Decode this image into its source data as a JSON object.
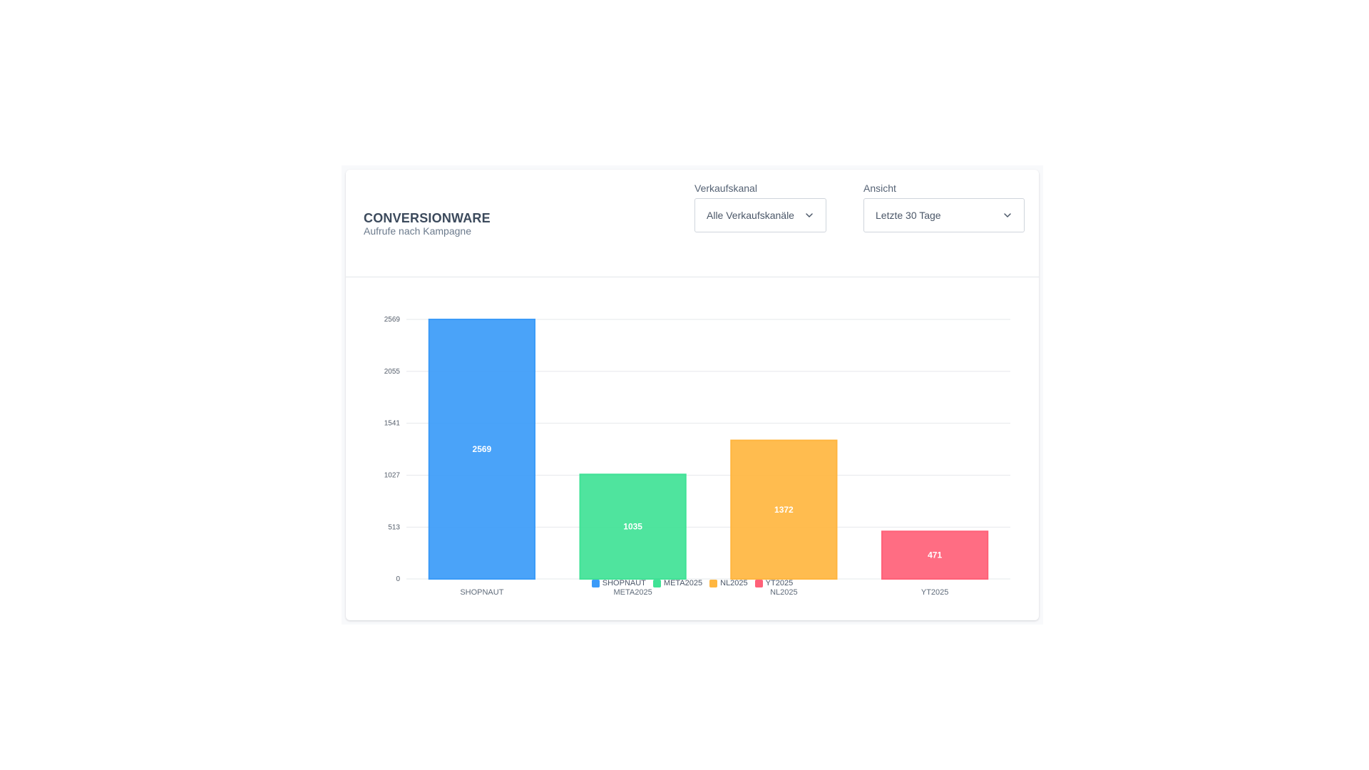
{
  "header": {
    "title": "CONVERSIONWARE",
    "subtitle": "Aufrufe nach Kampagne"
  },
  "filters": {
    "channel": {
      "label": "Verkaufskanal",
      "value": "Alle Verkaufskanäle",
      "icon": "chevron-down-icon"
    },
    "view": {
      "label": "Ansicht",
      "value": "Letzte 30 Tage",
      "icon": "chevron-down-icon"
    }
  },
  "chart_data": {
    "type": "bar",
    "categories": [
      "SHOPNAUT",
      "META2025",
      "NL2025",
      "YT2025"
    ],
    "values": [
      2569,
      1035,
      1372,
      471
    ],
    "colors": [
      "#3b9bf8",
      "#40e296",
      "#ffb640",
      "#ff6178"
    ],
    "yticks": [
      0,
      513,
      1027,
      1541,
      2055,
      2569
    ],
    "ylim": [
      0,
      2569
    ],
    "grid": true,
    "legend_position": "bottom",
    "data_labels": true
  }
}
